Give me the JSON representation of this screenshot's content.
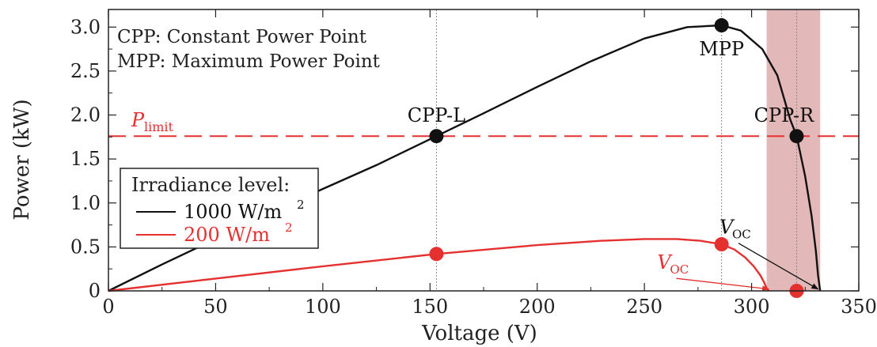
{
  "chart_data": {
    "type": "line",
    "xlabel": "Voltage (V)",
    "ylabel": "Power (kW)",
    "xlim": [
      0,
      350
    ],
    "ylim": [
      0,
      3.2
    ],
    "x_ticks": [
      0,
      50,
      100,
      150,
      200,
      250,
      300,
      350
    ],
    "y_ticks": [
      0,
      0.5,
      1.0,
      1.5,
      2.0,
      2.5,
      3.0
    ],
    "y_tick_labels": [
      "0",
      "0.5",
      "1.0",
      "1.5",
      "2.0",
      "2.5",
      "3.0"
    ],
    "notes": [
      "CPP: Constant Power Point",
      "MPP: Maximum Power Point"
    ],
    "legend": {
      "title": "Irradiance level:",
      "position": "left-center",
      "entries": [
        {
          "text": "1000 W/m",
          "sup": "2",
          "color": "#111111"
        },
        {
          "text": "200 W/m",
          "sup": "2",
          "color": "#e53030"
        }
      ]
    },
    "p_limit": {
      "label": "P",
      "sub": "limit",
      "value": 1.76,
      "color": "#e53030"
    },
    "cpp_r_band": [
      307,
      332
    ],
    "vertical_guides": [
      153,
      286,
      321
    ],
    "series": [
      {
        "color": "#111111",
        "x": [
          0,
          25,
          50,
          75,
          100,
          125,
          153,
          175,
          200,
          225,
          250,
          270,
          286,
          295,
          305,
          312,
          318,
          321,
          325,
          328,
          330,
          331,
          332
        ],
        "y": [
          0,
          0.3,
          0.59,
          0.88,
          1.16,
          1.43,
          1.76,
          2.02,
          2.32,
          2.61,
          2.87,
          3.0,
          3.02,
          2.96,
          2.75,
          2.45,
          1.95,
          1.76,
          1.3,
          0.85,
          0.45,
          0.18,
          0
        ]
      },
      {
        "color": "#e53030",
        "x": [
          0,
          50,
          100,
          153,
          200,
          230,
          250,
          265,
          276,
          286,
          292,
          297,
          301,
          304,
          306,
          307,
          308
        ],
        "y": [
          0,
          0.14,
          0.28,
          0.42,
          0.52,
          0.57,
          0.59,
          0.59,
          0.57,
          0.53,
          0.47,
          0.38,
          0.28,
          0.18,
          0.09,
          0.03,
          0
        ]
      }
    ],
    "points": [
      {
        "label": "CPP-L",
        "x": 153,
        "y": 1.76,
        "color": "#111111"
      },
      {
        "label": "MPP",
        "x": 286,
        "y": 3.02,
        "color": "#111111"
      },
      {
        "label": "CPP-R",
        "x": 321,
        "y": 1.76,
        "color": "#111111"
      },
      {
        "label": "",
        "x": 153,
        "y": 0.42,
        "color": "#e53030"
      },
      {
        "label": "",
        "x": 286,
        "y": 0.53,
        "color": "#e53030"
      },
      {
        "label": "",
        "x": 321,
        "y": 0.0,
        "color": "#e53030"
      }
    ],
    "voc_annotations": [
      {
        "text": "V",
        "sub": "OC",
        "color": "#111111",
        "text_at": [
          285,
          0.65
        ],
        "arrow_to": [
          331,
          0.02
        ]
      },
      {
        "text": "V",
        "sub": "OC",
        "color": "#e53030",
        "text_at": [
          256,
          0.25
        ],
        "arrow_to": [
          308,
          0.02
        ]
      }
    ]
  }
}
